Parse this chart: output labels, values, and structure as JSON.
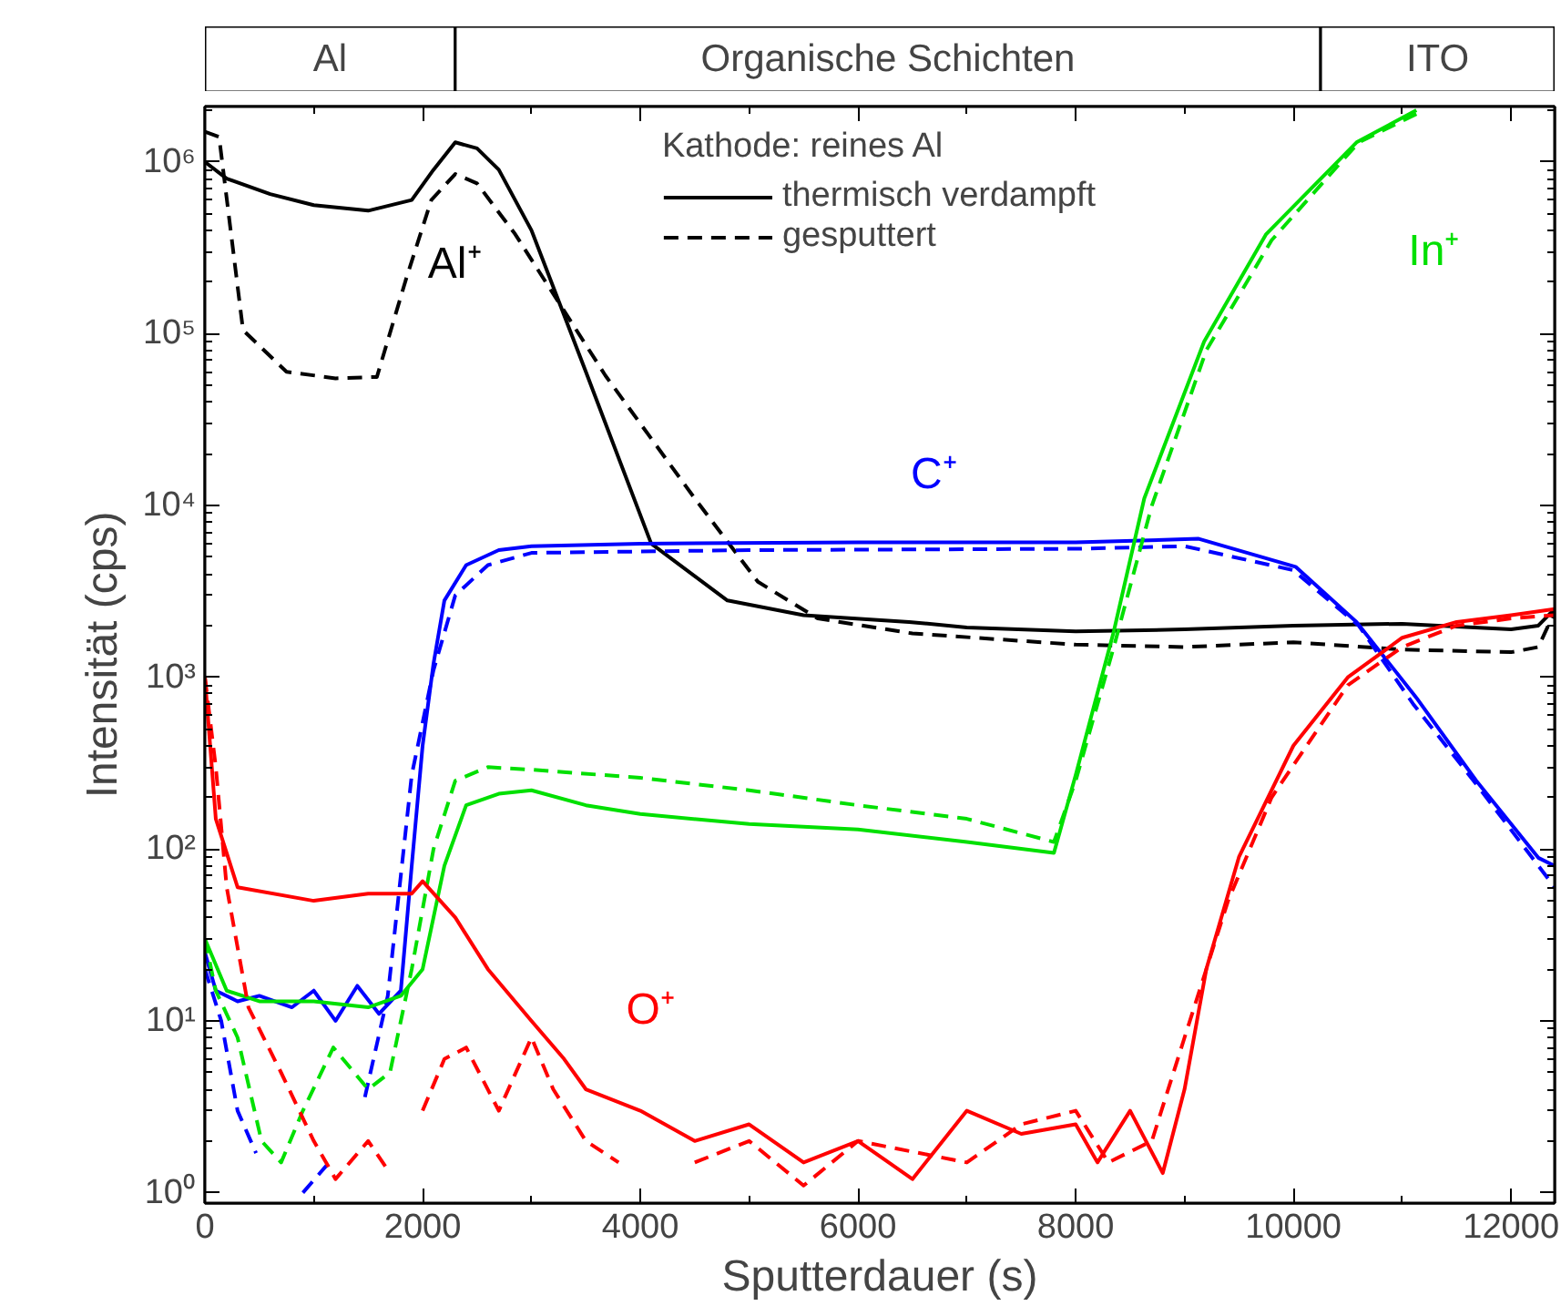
{
  "chart_data": {
    "type": "line",
    "xlabel": "Sputterdauer (s)",
    "ylabel": "Intensität (cps)",
    "legend_title": "Kathode: reines Al",
    "log": "y",
    "grid": false,
    "legend": "top",
    "xlim": [
      0,
      12400
    ],
    "ylim": [
      0.87,
      2100000
    ],
    "xticks": [
      0,
      2000,
      4000,
      6000,
      8000,
      10000,
      12000
    ],
    "yticks": [
      {
        "value": 1,
        "label": "10⁰"
      },
      {
        "value": 10,
        "label": "10¹"
      },
      {
        "value": 100,
        "label": "10²"
      },
      {
        "value": 1000,
        "label": "10³"
      },
      {
        "value": 10000,
        "label": "10⁴"
      },
      {
        "value": 100000,
        "label": "10⁵"
      },
      {
        "value": 1000000,
        "label": "10⁶"
      }
    ],
    "bands": [
      {
        "axis": "x",
        "from": 0,
        "to": 2300,
        "label": "Al",
        "color": "#ffffff"
      },
      {
        "axis": "x",
        "from": 2300,
        "to": 10250,
        "label": "Organische Schichten",
        "color": "#ffffff"
      },
      {
        "axis": "x",
        "from": 10250,
        "to": 12400,
        "label": "ITO",
        "color": "#ffffff"
      }
    ],
    "annotations": [
      "Al⁺",
      "C⁺",
      "In⁺",
      "O⁺"
    ],
    "series": [
      {
        "name": "thermisch verdampft",
        "color": "#000000",
        "line_style": "solid",
        "x": [
          0,
          200,
          600,
          1000,
          1500,
          1900,
          2100,
          2300,
          2500,
          2700,
          3000,
          3500,
          4100,
          4800,
          5500,
          6470,
          7000,
          8000,
          9000,
          10000,
          11000,
          12000,
          12250,
          12400
        ],
        "values": [
          1000000,
          800000,
          650000,
          560000,
          520000,
          600000,
          900000,
          1300000,
          1200000,
          900000,
          400000,
          60000,
          6000,
          2800,
          2300,
          2100,
          1950,
          1850,
          1900,
          2000,
          2050,
          1900,
          2000,
          2500
        ]
      },
      {
        "name": "gesputtert",
        "color": "#000000",
        "line_style": "dashed",
        "x": [
          0,
          130,
          350,
          750,
          1200,
          1580,
          1850,
          2080,
          2300,
          2500,
          2850,
          3680,
          4500,
          5080,
          5630,
          6500,
          8000,
          9000,
          10000,
          11000,
          12000,
          12250,
          12400
        ],
        "values": [
          1500000,
          1400000,
          105000,
          60000,
          55000,
          56000,
          210000,
          600000,
          850000,
          750000,
          380000,
          57000,
          11000,
          3600,
          2200,
          1800,
          1550,
          1500,
          1600,
          1450,
          1400,
          1500,
          2400
        ]
      },
      {
        "color": "#0000ff",
        "line_style": "solid",
        "x": [
          0,
          100,
          300,
          500,
          800,
          1000,
          1200,
          1400,
          1600,
          1800,
          1900,
          2000,
          2100,
          2200,
          2400,
          2700,
          3000,
          4000,
          6000,
          8000,
          9130,
          10020,
          10580,
          11130,
          11680,
          12250,
          12400
        ],
        "values": [
          25,
          15,
          13,
          14,
          12,
          15,
          10,
          16,
          11,
          15,
          80,
          400,
          1200,
          2800,
          4500,
          5500,
          5800,
          6000,
          6100,
          6100,
          6400,
          4400,
          2100,
          760,
          250,
          89,
          80
        ]
      },
      {
        "color": "#0000ff",
        "line_style": "dashed",
        "x": [
          0,
          150,
          300,
          470,
          600,
          900,
          1180,
          1300,
          1470,
          1680,
          1900,
          2100,
          2300,
          2600,
          3000,
          5000,
          8000,
          9000,
          10000,
          10600,
          11100,
          11700,
          12250,
          12400
        ],
        "values": [
          20,
          10,
          3,
          1.7,
          null,
          1.0,
          1.6,
          null,
          3.6,
          14,
          270,
          1100,
          3000,
          4500,
          5300,
          5500,
          5600,
          5800,
          4200,
          2000,
          700,
          230,
          80,
          60
        ]
      },
      {
        "color": "#00e000",
        "line_style": "solid",
        "x": [
          0,
          200,
          500,
          1000,
          1500,
          1800,
          2000,
          2200,
          2400,
          2700,
          3000,
          3500,
          4000,
          5000,
          6000,
          7000,
          7800,
          8000,
          8350,
          8630,
          9180,
          9750,
          10580,
          11130
        ],
        "values": [
          30,
          15,
          13,
          13,
          12,
          14,
          20,
          80,
          180,
          210,
          220,
          180,
          160,
          140,
          130,
          110,
          95,
          270,
          1850,
          11000,
          90000,
          380000,
          1300000,
          2000000
        ]
      },
      {
        "color": "#00e000",
        "line_style": "dashed",
        "x": [
          0,
          100,
          300,
          520,
          700,
          900,
          1180,
          1500,
          1700,
          1900,
          2100,
          2300,
          2600,
          3000,
          4000,
          5000,
          6000,
          7000,
          7800,
          8000,
          8350,
          8700,
          9200,
          9800,
          10600,
          11200
        ],
        "values": [
          30,
          15,
          8,
          2,
          1.5,
          3,
          7,
          4,
          5,
          20,
          100,
          250,
          300,
          290,
          260,
          220,
          180,
          150,
          110,
          250,
          1500,
          10000,
          80000,
          350000,
          1300000,
          2000000
        ]
      },
      {
        "color": "#ff0000",
        "line_style": "solid",
        "x": [
          0,
          100,
          300,
          1000,
          1500,
          1900,
          2000,
          2300,
          2600,
          3000,
          3300,
          3500,
          4000,
          4500,
          5000,
          5500,
          6000,
          6500,
          7000,
          7500,
          8000,
          8200,
          8500,
          8800,
          9000,
          9200,
          9500,
          10000,
          10500,
          11000,
          11500,
          12000,
          12400
        ],
        "values": [
          1000,
          150,
          60,
          50,
          55,
          55,
          65,
          40,
          20,
          10,
          6,
          4,
          3,
          2,
          2.5,
          1.5,
          2,
          1.2,
          3,
          2.2,
          2.5,
          1.5,
          3,
          1.3,
          4,
          20,
          90,
          400,
          1000,
          1700,
          2100,
          2300,
          2500
        ]
      },
      {
        "color": "#ff0000",
        "line_style": "dashed",
        "x": [
          0,
          100,
          200,
          400,
          700,
          1000,
          1200,
          1500,
          1700,
          1800,
          2000,
          2200,
          2400,
          2700,
          3000,
          3200,
          3500,
          3800,
          4200,
          4500,
          5000,
          5500,
          6000,
          7000,
          7500,
          8000,
          8300,
          8700,
          9000,
          9400,
          9800,
          10500,
          11000,
          11500,
          12000,
          12400
        ],
        "values": [
          1000,
          300,
          60,
          12,
          5,
          2,
          1.2,
          2,
          1.3,
          null,
          3,
          6,
          7,
          3,
          8,
          4,
          2,
          1.5,
          null,
          1.5,
          2,
          1.1,
          2,
          1.5,
          2.5,
          3,
          1.5,
          2,
          8,
          50,
          200,
          900,
          1500,
          2000,
          2200,
          2300
        ]
      }
    ]
  }
}
